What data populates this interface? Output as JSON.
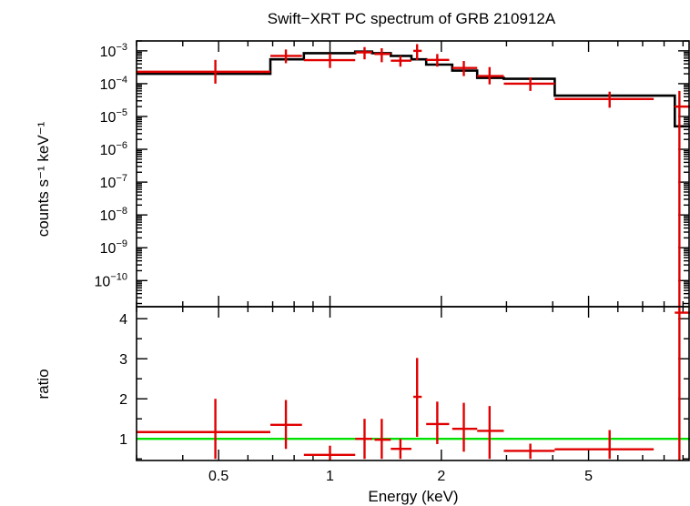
{
  "chart_data": {
    "type": "line",
    "title": "Swift−XRT PC spectrum of GRB 210912A",
    "xlabel": "Energy (keV)",
    "xscale": "log",
    "xlim": [
      0.3,
      9.4
    ],
    "x_ticks": [
      {
        "value": 0.5,
        "label": "0.5"
      },
      {
        "value": 1,
        "label": "1"
      },
      {
        "value": 2,
        "label": "2"
      },
      {
        "value": 5,
        "label": "5"
      }
    ],
    "colors": {
      "data": "#e00000",
      "model": "#000000",
      "unity": "#00e000",
      "frame": "#000000"
    },
    "panels": [
      {
        "name": "spectrum",
        "ylabel": "counts s⁻¹ keV⁻¹",
        "yscale": "log",
        "ylim": [
          1.6e-11,
          0.002
        ],
        "y_ticks": [
          {
            "value": 0.001,
            "base": "10",
            "exp": "−3"
          },
          {
            "value": 0.0001,
            "base": "10",
            "exp": "−4"
          },
          {
            "value": 1e-05,
            "base": "10",
            "exp": "−5"
          },
          {
            "value": 1e-06,
            "base": "10",
            "exp": "−6"
          },
          {
            "value": 1e-07,
            "base": "10",
            "exp": "−7"
          },
          {
            "value": 1e-08,
            "base": "10",
            "exp": "−8"
          },
          {
            "value": 1e-09,
            "base": "10",
            "exp": "−9"
          },
          {
            "value": 1e-10,
            "base": "10",
            "exp": "−10"
          }
        ],
        "data_points": [
          {
            "x": 0.49,
            "xlo": 0.3,
            "xhi": 0.69,
            "y": 0.00023,
            "ylo": 0.0001,
            "yhi": 0.00053
          },
          {
            "x": 0.76,
            "xlo": 0.69,
            "xhi": 0.84,
            "y": 0.0007,
            "ylo": 0.00042,
            "yhi": 0.0011
          },
          {
            "x": 1.0,
            "xlo": 0.85,
            "xhi": 1.17,
            "y": 0.00052,
            "ylo": 0.0003,
            "yhi": 0.00082
          },
          {
            "x": 1.24,
            "xlo": 1.17,
            "xhi": 1.3,
            "y": 0.0009,
            "ylo": 0.00055,
            "yhi": 0.0013
          },
          {
            "x": 1.38,
            "xlo": 1.32,
            "xhi": 1.46,
            "y": 0.0008,
            "ylo": 0.00045,
            "yhi": 0.0012
          },
          {
            "x": 1.55,
            "xlo": 1.46,
            "xhi": 1.66,
            "y": 0.0005,
            "ylo": 0.00033,
            "yhi": 0.0007
          },
          {
            "x": 1.72,
            "xlo": 1.68,
            "xhi": 1.77,
            "y": 0.001,
            "ylo": 0.00052,
            "yhi": 0.0016
          },
          {
            "x": 1.95,
            "xlo": 1.82,
            "xhi": 2.1,
            "y": 0.00053,
            "ylo": 0.00033,
            "yhi": 0.0008
          },
          {
            "x": 2.3,
            "xlo": 2.14,
            "xhi": 2.5,
            "y": 0.0003,
            "ylo": 0.00017,
            "yhi": 0.00049
          },
          {
            "x": 2.7,
            "xlo": 2.5,
            "xhi": 2.95,
            "y": 0.00017,
            "ylo": 9.5e-05,
            "yhi": 0.00032
          },
          {
            "x": 3.48,
            "xlo": 2.95,
            "xhi": 4.05,
            "y": 0.0001,
            "ylo": 6e-05,
            "yhi": 0.000155
          },
          {
            "x": 5.7,
            "xlo": 4.05,
            "xhi": 7.5,
            "y": 3.4e-05,
            "ylo": 1.85e-05,
            "yhi": 5.7e-05
          },
          {
            "x": 8.8,
            "xlo": 8.55,
            "xhi": 9.4,
            "y": 2e-05,
            "ylo": 1.6e-11,
            "yhi": 6e-05
          }
        ],
        "model_steps": [
          {
            "xlo": 0.3,
            "xhi": 0.69,
            "y": 0.0002
          },
          {
            "xlo": 0.69,
            "xhi": 0.85,
            "y": 0.00055
          },
          {
            "xlo": 0.85,
            "xhi": 1.17,
            "y": 0.00085
          },
          {
            "xlo": 1.17,
            "xhi": 1.3,
            "y": 0.00095
          },
          {
            "xlo": 1.3,
            "xhi": 1.46,
            "y": 0.00085
          },
          {
            "xlo": 1.46,
            "xhi": 1.66,
            "y": 0.0007
          },
          {
            "xlo": 1.66,
            "xhi": 1.82,
            "y": 0.00055
          },
          {
            "xlo": 1.82,
            "xhi": 2.14,
            "y": 0.00038
          },
          {
            "xlo": 2.14,
            "xhi": 2.5,
            "y": 0.00025
          },
          {
            "xlo": 2.5,
            "xhi": 2.95,
            "y": 0.00015
          },
          {
            "xlo": 2.95,
            "xhi": 4.05,
            "y": 0.00014
          },
          {
            "xlo": 4.05,
            "xhi": 8.55,
            "y": 4.3e-05
          },
          {
            "xlo": 8.55,
            "xhi": 9.4,
            "y": 5e-06
          }
        ]
      },
      {
        "name": "ratio",
        "ylabel": "ratio",
        "yscale": "linear",
        "ylim": [
          0.46,
          4.3
        ],
        "y_ticks": [
          {
            "value": 1,
            "label": "1"
          },
          {
            "value": 2,
            "label": "2"
          },
          {
            "value": 3,
            "label": "3"
          },
          {
            "value": 4,
            "label": "4"
          }
        ],
        "unity_line": 1,
        "data_points": [
          {
            "x": 0.49,
            "xlo": 0.3,
            "xhi": 0.69,
            "y": 1.17,
            "ylo": 0.5,
            "yhi": 2.0
          },
          {
            "x": 0.76,
            "xlo": 0.69,
            "xhi": 0.84,
            "y": 1.35,
            "ylo": 0.75,
            "yhi": 1.97
          },
          {
            "x": 1.0,
            "xlo": 0.85,
            "xhi": 1.17,
            "y": 0.6,
            "ylo": 0.46,
            "yhi": 0.83
          },
          {
            "x": 1.24,
            "xlo": 1.17,
            "xhi": 1.3,
            "y": 1.0,
            "ylo": 0.5,
            "yhi": 1.5
          },
          {
            "x": 1.38,
            "xlo": 1.32,
            "xhi": 1.46,
            "y": 0.98,
            "ylo": 0.5,
            "yhi": 1.5
          },
          {
            "x": 1.55,
            "xlo": 1.46,
            "xhi": 1.66,
            "y": 0.75,
            "ylo": 0.5,
            "yhi": 1.0
          },
          {
            "x": 1.72,
            "xlo": 1.68,
            "xhi": 1.77,
            "y": 2.05,
            "ylo": 1.05,
            "yhi": 3.02
          },
          {
            "x": 1.95,
            "xlo": 1.82,
            "xhi": 2.1,
            "y": 1.37,
            "ylo": 0.87,
            "yhi": 1.93
          },
          {
            "x": 2.3,
            "xlo": 2.14,
            "xhi": 2.5,
            "y": 1.25,
            "ylo": 0.68,
            "yhi": 1.9
          },
          {
            "x": 2.7,
            "xlo": 2.5,
            "xhi": 2.95,
            "y": 1.2,
            "ylo": 0.5,
            "yhi": 1.82
          },
          {
            "x": 3.48,
            "xlo": 2.95,
            "xhi": 4.05,
            "y": 0.7,
            "ylo": 0.5,
            "yhi": 0.88
          },
          {
            "x": 5.7,
            "xlo": 4.05,
            "xhi": 7.5,
            "y": 0.74,
            "ylo": 0.5,
            "yhi": 1.22
          },
          {
            "x": 8.8,
            "xlo": 8.55,
            "xhi": 9.4,
            "y": 4.15,
            "ylo": 0.46,
            "yhi": 4.3
          }
        ]
      }
    ]
  }
}
